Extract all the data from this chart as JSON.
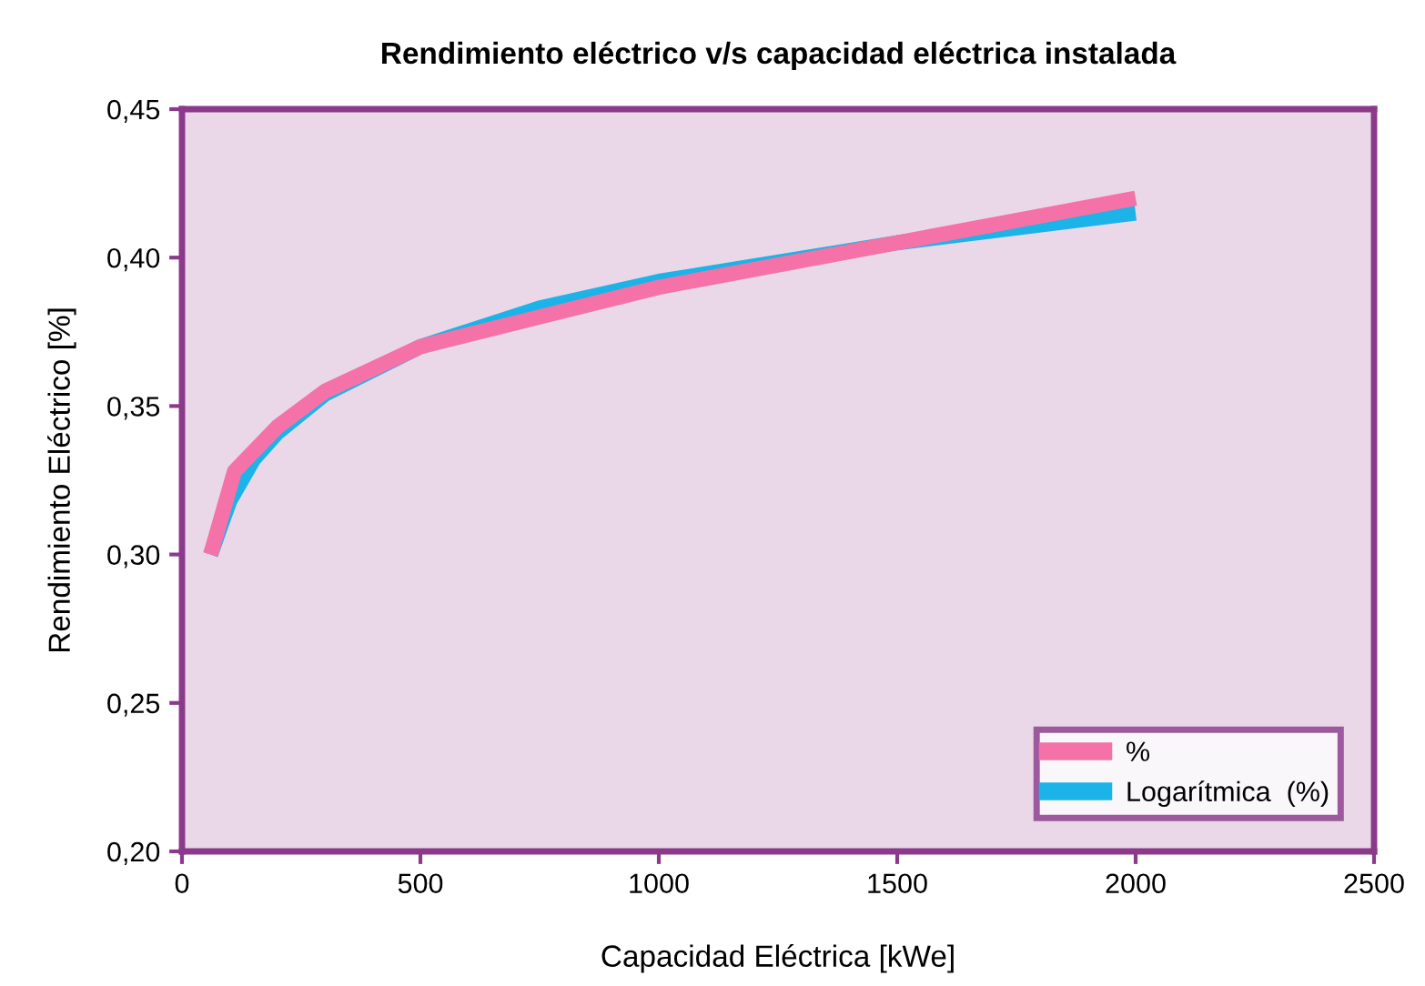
{
  "chart_data": {
    "type": "line",
    "title": "Rendimiento eléctrico v/s capacidad eléctrica instalada",
    "xlabel": "Capacidad Eléctrica [kWe]",
    "ylabel": "Rendimiento Eléctrico [%]",
    "series": [
      {
        "name": "%",
        "color": "#f472a8",
        "x": [
          60,
          110,
          200,
          300,
          500,
          750,
          1000,
          1500,
          2000
        ],
        "values": [
          0.3,
          0.328,
          0.343,
          0.355,
          0.37,
          0.38,
          0.39,
          0.405,
          0.42
        ]
      },
      {
        "name": "Logarítmica  (%)",
        "color": "#1cb4e8",
        "x": [
          60,
          100,
          150,
          200,
          300,
          500,
          750,
          1000,
          1500,
          2000
        ],
        "values": [
          0.3,
          0.318,
          0.332,
          0.341,
          0.354,
          0.37,
          0.383,
          0.392,
          0.405,
          0.415
        ]
      }
    ],
    "xlim": [
      0,
      2500
    ],
    "xticks": [
      0,
      500,
      1000,
      1500,
      2000,
      2500
    ],
    "ylim": [
      0.2,
      0.45
    ],
    "yticks": [
      {
        "value": 0.2,
        "label": "0,20"
      },
      {
        "value": 0.25,
        "label": "0,25"
      },
      {
        "value": 0.3,
        "label": "0,30"
      },
      {
        "value": 0.35,
        "label": "0,35"
      },
      {
        "value": 0.4,
        "label": "0,40"
      },
      {
        "value": 0.45,
        "label": "0,45"
      }
    ],
    "grid": false,
    "legend": "bottom right",
    "marker": "none",
    "line_style": "solid"
  }
}
